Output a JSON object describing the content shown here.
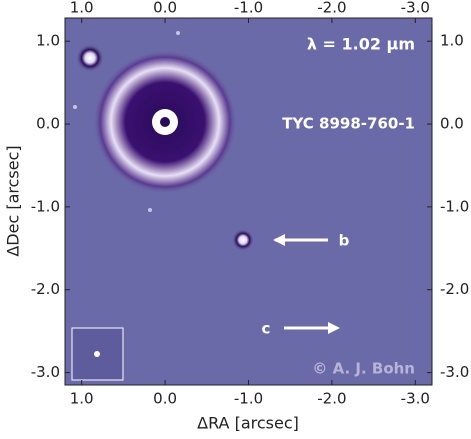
{
  "chart_data": {
    "type": "image",
    "annotations": {
      "wavelength": "λ = 1.02 µm",
      "target": "TYC 8998-760-1",
      "b": "b",
      "c": "c",
      "credit": "© A. J. Bohn"
    },
    "xlabel": "ΔRA [arcsec]",
    "ylabel": "ΔDec [arcsec]",
    "xlim": [
      1.2,
      -3.2
    ],
    "ylim": [
      -3.15,
      1.28
    ],
    "xticks": [
      {
        "value": 1,
        "label": "1.0"
      },
      {
        "value": 0,
        "label": "0.0"
      },
      {
        "value": -1,
        "label": "-1.0"
      },
      {
        "value": -2,
        "label": "-2.0"
      },
      {
        "value": -3,
        "label": "-3.0"
      }
    ],
    "yticks": [
      {
        "value": 1,
        "label": "1.0"
      },
      {
        "value": 0,
        "label": "0.0"
      },
      {
        "value": -1,
        "label": "-1.0"
      },
      {
        "value": -2,
        "label": "-2.0"
      },
      {
        "value": -3,
        "label": "-3.0"
      }
    ]
  }
}
